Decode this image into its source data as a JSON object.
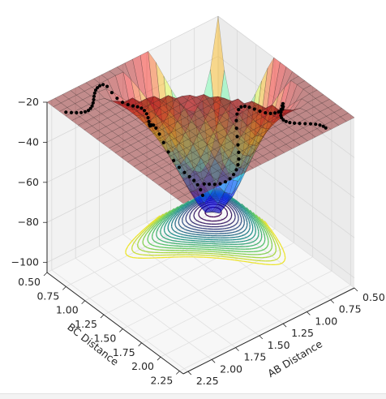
{
  "chart_data": {
    "type": "surface3d",
    "title": "",
    "xlabel": "AB Distance",
    "ylabel": "BC Distance",
    "zlabel": "",
    "x_ticks": [
      "0.50",
      "0.75",
      "1.00",
      "1.25",
      "1.50",
      "1.75",
      "2.00",
      "2.25"
    ],
    "y_ticks": [
      "0.50",
      "0.75",
      "1.00",
      "1.25",
      "1.50",
      "1.75",
      "2.00",
      "2.25"
    ],
    "z_ticks": [
      "−20",
      "−40",
      "−60",
      "−80",
      "−100"
    ],
    "xlim": [
      0.5,
      2.3
    ],
    "ylim": [
      0.5,
      2.3
    ],
    "zlim": [
      -105,
      -20
    ],
    "grid": true,
    "surface_colormap": "jet (translucent)",
    "contour_colormap": "viridis",
    "trajectory_color": "#000000",
    "pane_color": "#f2f2f2"
  }
}
